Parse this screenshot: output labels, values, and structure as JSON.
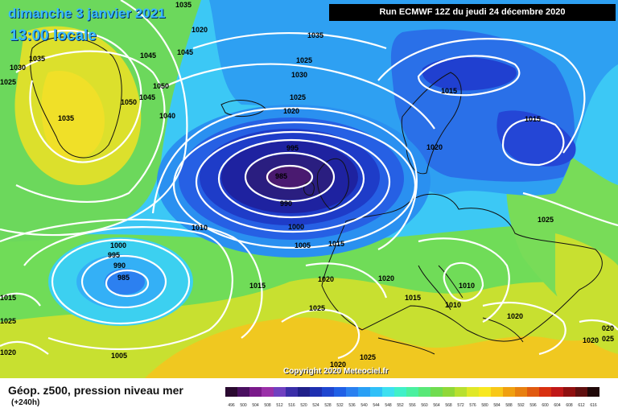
{
  "header": {
    "date": "dimanche 3 janvier 2021",
    "local_time": "13:00 locale",
    "run": "Run ECMWF 12Z du jeudi 24 décembre 2020",
    "copyright": "Copyright 2020 Meteociel.fr"
  },
  "legend": {
    "title": "Géop. z500, pression niveau mer",
    "lead": "(+240h)",
    "ticks": [
      "496",
      "500",
      "504",
      "508",
      "512",
      "516",
      "520",
      "524",
      "528",
      "532",
      "536",
      "540",
      "544",
      "548",
      "552",
      "556",
      "560",
      "564",
      "568",
      "572",
      "576",
      "580",
      "584",
      "588",
      "592",
      "596",
      "600",
      "604",
      "608",
      "612",
      "616"
    ],
    "colors": [
      "#2a0a30",
      "#4a1060",
      "#7a1a8a",
      "#9a30a8",
      "#7040c0",
      "#3a2ea8",
      "#20208a",
      "#1e2fb0",
      "#1f46d0",
      "#2060e6",
      "#2a80f0",
      "#2aa0f5",
      "#30c0f8",
      "#3ee0f0",
      "#40f0c8",
      "#4af0a0",
      "#58e878",
      "#70dc50",
      "#90d838",
      "#b8e030",
      "#e0e828",
      "#f8e820",
      "#f8c818",
      "#f0a010",
      "#e88010",
      "#e05a10",
      "#d83010",
      "#c01818",
      "#901010",
      "#601010",
      "#200808"
    ]
  },
  "isobars": [
    {
      "label": "1035"
    },
    {
      "label": "1035"
    },
    {
      "label": "1030"
    },
    {
      "label": "1025"
    },
    {
      "label": "1035"
    },
    {
      "label": "1045"
    },
    {
      "label": "1045"
    },
    {
      "label": "1050"
    },
    {
      "label": "1050"
    },
    {
      "label": "1045"
    },
    {
      "label": "1040"
    },
    {
      "label": "1035"
    },
    {
      "label": "1030"
    },
    {
      "label": "1025"
    },
    {
      "label": "1020"
    },
    {
      "label": "995"
    },
    {
      "label": "985"
    },
    {
      "label": "990"
    },
    {
      "label": "1000"
    },
    {
      "label": "1005"
    },
    {
      "label": "1010"
    },
    {
      "label": "1015"
    },
    {
      "label": "1020"
    },
    {
      "label": "1015"
    },
    {
      "label": "1015"
    },
    {
      "label": "1020"
    },
    {
      "label": "1025"
    },
    {
      "label": "1000"
    },
    {
      "label": "995"
    },
    {
      "label": "990"
    },
    {
      "label": "985"
    },
    {
      "label": "1015"
    },
    {
      "label": "1020"
    },
    {
      "label": "1025"
    },
    {
      "label": "1020"
    },
    {
      "label": "1010"
    },
    {
      "label": "1015"
    },
    {
      "label": "1010"
    },
    {
      "label": "1020"
    },
    {
      "label": "1025"
    },
    {
      "label": "1005"
    },
    {
      "label": "1020"
    },
    {
      "label": "1025"
    },
    {
      "label": "1020"
    },
    {
      "label": "1020"
    },
    {
      "label": "1025"
    },
    {
      "label": "1015"
    },
    {
      "label": "020"
    },
    {
      "label": "025"
    }
  ]
}
